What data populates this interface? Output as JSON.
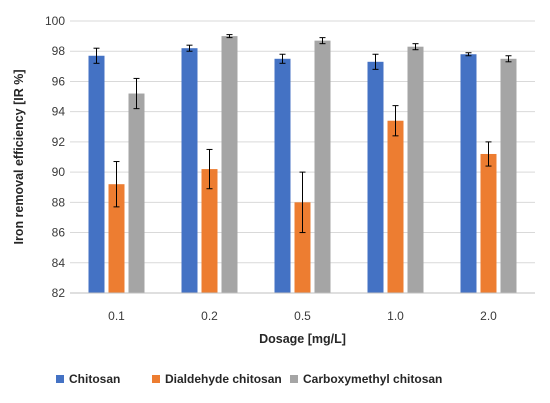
{
  "chart_data": {
    "type": "bar",
    "title": "",
    "xlabel": "Dosage  [mg/L]",
    "ylabel": "Iron removal efficiency [IR %]",
    "categories": [
      "0.1",
      "0.2",
      "0.5",
      "1.0",
      "2.0"
    ],
    "ylim": [
      82,
      100
    ],
    "yticks": [
      82,
      84,
      86,
      88,
      90,
      92,
      94,
      96,
      98,
      100
    ],
    "grid": true,
    "legend_position": "bottom",
    "series": [
      {
        "name": "Chitosan",
        "color": "#4472c4",
        "values": [
          97.7,
          98.2,
          97.5,
          97.3,
          97.8
        ],
        "errors": [
          0.5,
          0.2,
          0.3,
          0.5,
          0.1
        ]
      },
      {
        "name": "Dialdehyde chitosan",
        "color": "#ed7d31",
        "values": [
          89.2,
          90.2,
          88.0,
          93.4,
          91.2
        ],
        "errors": [
          1.5,
          1.3,
          2.0,
          1.0,
          0.8
        ]
      },
      {
        "name": "Carboxymethyl chitosan",
        "color": "#a5a5a5",
        "values": [
          95.2,
          99.0,
          98.7,
          98.3,
          97.5
        ],
        "errors": [
          1.0,
          0.1,
          0.2,
          0.2,
          0.2
        ]
      }
    ]
  }
}
